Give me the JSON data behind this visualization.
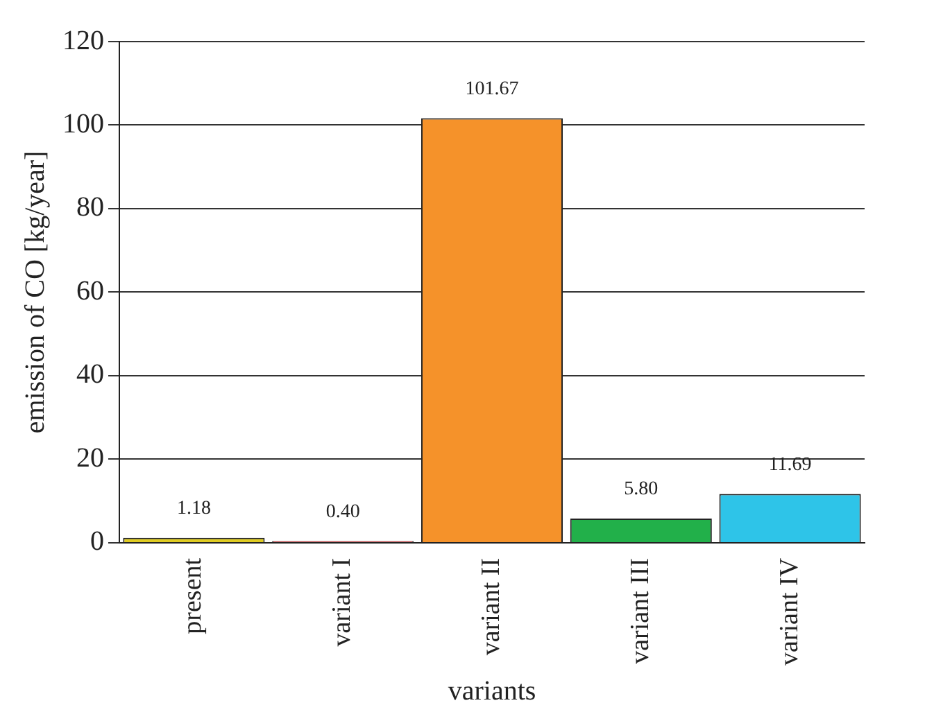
{
  "chart_data": {
    "type": "bar",
    "xlabel": "variants",
    "ylabel": "emission of CO [kg/year]",
    "categories": [
      "present",
      "variant I",
      "variant II",
      "variant III",
      "variant IV"
    ],
    "values": [
      1.18,
      0.4,
      101.67,
      5.8,
      11.69
    ],
    "colors": [
      "#e0cc22",
      "#e02428",
      "#f5922a",
      "#22b04a",
      "#2ec4e8"
    ],
    "value_labels": [
      "1.18",
      "0.40",
      "101.67",
      "5.80",
      "11.69"
    ],
    "ylim": [
      0,
      120
    ],
    "yticks": [
      0,
      20,
      40,
      60,
      80,
      100,
      120
    ],
    "grid": "y",
    "legend": false
  }
}
